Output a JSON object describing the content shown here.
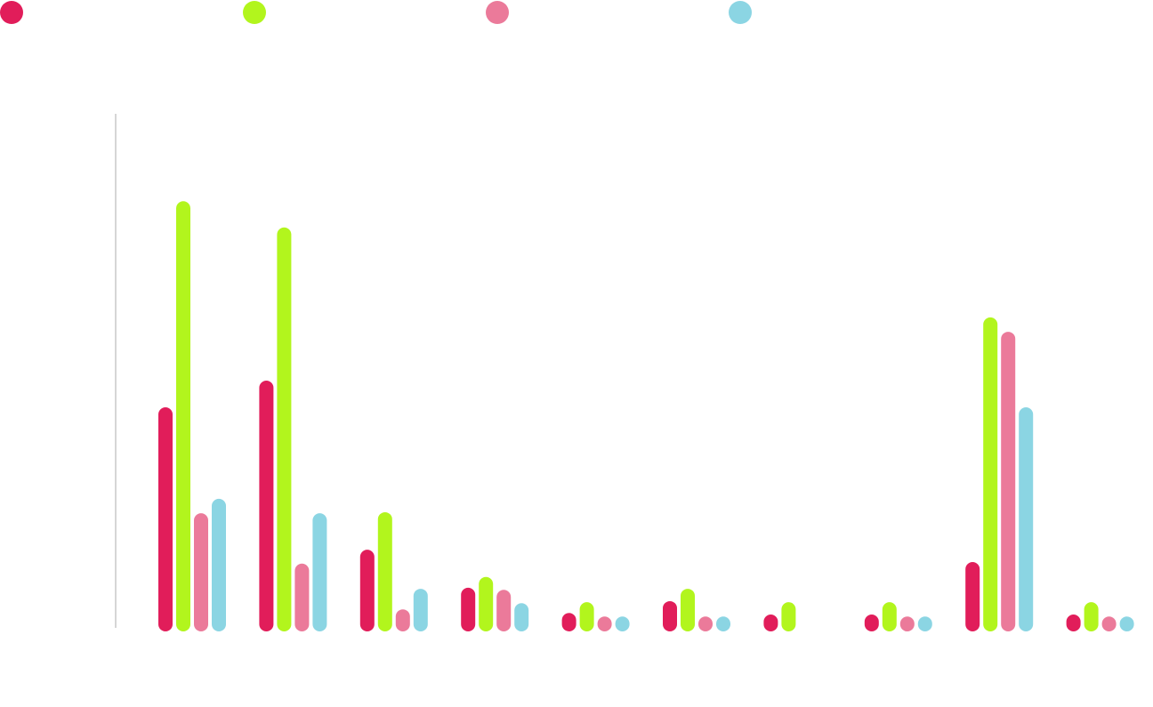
{
  "chart_data": {
    "type": "bar",
    "title": "",
    "xlabel": "",
    "ylabel": "",
    "ylim": [
      0,
      100
    ],
    "grid": false,
    "legend_position": "top-left",
    "categories": [
      "",
      "",
      "",
      "",
      "",
      "",
      "",
      "",
      "",
      ""
    ],
    "series": [
      {
        "color": "#e11d5a",
        "values": [
          42.9,
          48.1,
          15.2,
          7.8,
          2.9,
          5.2,
          2.6,
          2.6,
          12.8,
          2.6
        ]
      },
      {
        "color": "#b2f51d",
        "values": [
          83.0,
          77.9,
          22.5,
          9.9,
          5.0,
          7.6,
          5.0,
          5.0,
          60.4,
          5.0
        ]
      },
      {
        "color": "#eb7a9a",
        "values": [
          22.3,
          12.5,
          3.6,
          7.4,
          2.2,
          2.2,
          0,
          2.2,
          57.6,
          2.2
        ]
      },
      {
        "color": "#8bd5e3",
        "values": [
          25.1,
          22.3,
          7.6,
          4.8,
          2.2,
          2.2,
          0,
          2.2,
          42.9,
          2.2
        ]
      }
    ]
  }
}
